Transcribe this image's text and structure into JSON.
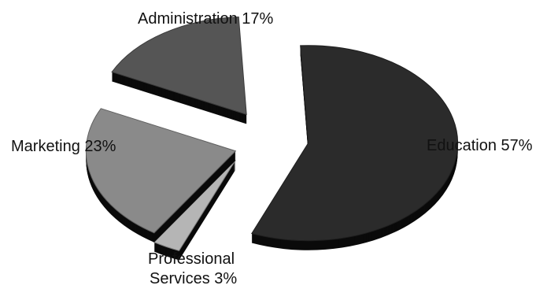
{
  "chart_data": {
    "type": "pie",
    "style": "3d-exploded",
    "title": "",
    "slices": [
      {
        "label": "Education",
        "value": 57,
        "text": "Education 57%",
        "color": "#2b2b2b"
      },
      {
        "label": "Professional Services",
        "value": 3,
        "text_lines": [
          "Professional",
          "Services 3%"
        ],
        "color": "#b5b5b5"
      },
      {
        "label": "Marketing",
        "value": 23,
        "text": "Marketing 23%",
        "color": "#8a8a8a"
      },
      {
        "label": "Administration",
        "value": 17,
        "text": "Administration 17%",
        "color": "#555555"
      }
    ],
    "legend": "none"
  }
}
